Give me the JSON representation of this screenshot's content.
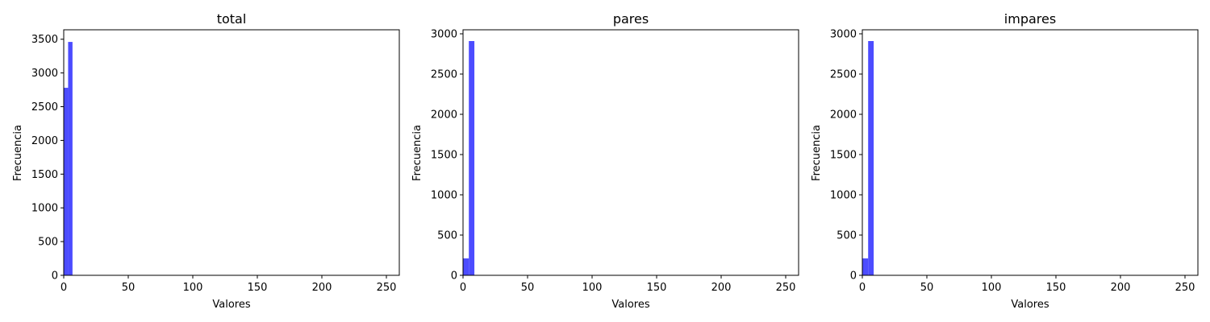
{
  "figure": {
    "bar_color": "#4c4cff",
    "edge_color": "#000000",
    "background": "#ffffff"
  },
  "chart_data": [
    {
      "type": "bar",
      "title": "total",
      "xlabel": "Valores",
      "ylabel": "Frecuencia",
      "xlim": [
        0,
        260
      ],
      "ylim": [
        0,
        3640
      ],
      "xticks": [
        0,
        50,
        100,
        150,
        200,
        250
      ],
      "yticks": [
        0,
        500,
        1000,
        1500,
        2000,
        2500,
        3000,
        3500
      ],
      "grid": false,
      "bins": [
        {
          "x0": 0,
          "x1": 3.4,
          "value": 2780
        },
        {
          "x0": 3.4,
          "x1": 6.8,
          "value": 3460
        }
      ]
    },
    {
      "type": "bar",
      "title": "pares",
      "xlabel": "Valores",
      "ylabel": "Frecuencia",
      "xlim": [
        0,
        260
      ],
      "ylim": [
        0,
        3050
      ],
      "xticks": [
        0,
        50,
        100,
        150,
        200,
        250
      ],
      "yticks": [
        0,
        500,
        1000,
        1500,
        2000,
        2500,
        3000
      ],
      "grid": false,
      "bins": [
        {
          "x0": 0,
          "x1": 4.5,
          "value": 210
        },
        {
          "x0": 4.5,
          "x1": 8.8,
          "value": 2910
        }
      ]
    },
    {
      "type": "bar",
      "title": "impares",
      "xlabel": "Valores",
      "ylabel": "Frecuencia",
      "xlim": [
        0,
        260
      ],
      "ylim": [
        0,
        3050
      ],
      "xticks": [
        0,
        50,
        100,
        150,
        200,
        250
      ],
      "yticks": [
        0,
        500,
        1000,
        1500,
        2000,
        2500,
        3000
      ],
      "grid": false,
      "bins": [
        {
          "x0": 0,
          "x1": 4.5,
          "value": 210
        },
        {
          "x0": 4.5,
          "x1": 8.8,
          "value": 2910
        }
      ]
    }
  ]
}
